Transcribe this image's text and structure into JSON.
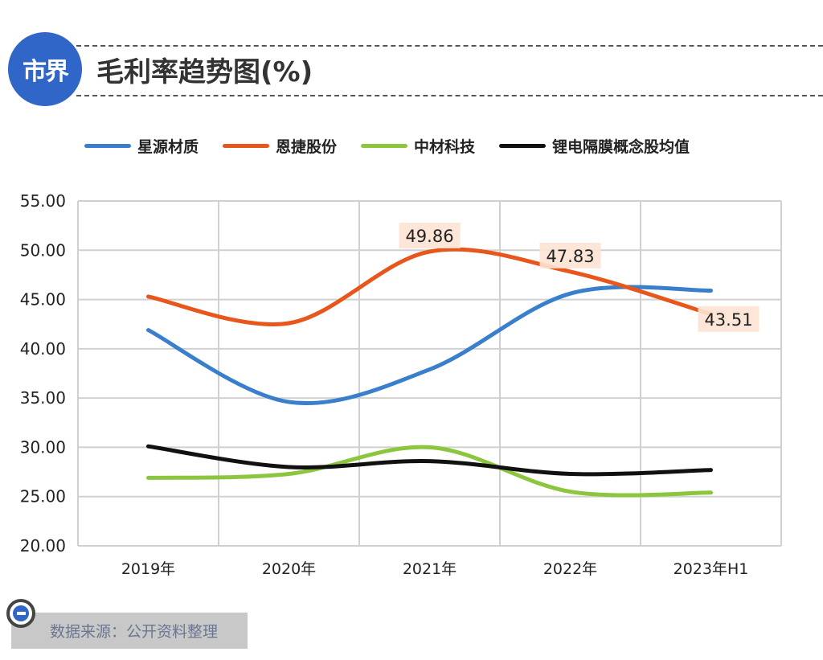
{
  "logo_text": "市界",
  "title": "毛利率趋势图(%)",
  "source": "数据来源：公开资料整理",
  "chart_data": {
    "type": "line",
    "title": "毛利率趋势图(%)",
    "categories": [
      "2019年",
      "2020年",
      "2021年",
      "2022年",
      "2023年H1"
    ],
    "ylim": [
      20,
      55
    ],
    "yticks": [
      "20.00",
      "25.00",
      "30.00",
      "35.00",
      "40.00",
      "45.00",
      "50.00",
      "55.00"
    ],
    "grid": true,
    "legend": "top",
    "series": [
      {
        "name": "星源材质",
        "color": "#3a7fcc",
        "values": [
          41.9,
          34.6,
          37.9,
          45.6,
          45.9
        ]
      },
      {
        "name": "恩捷股份",
        "color": "#e8561b",
        "values": [
          45.3,
          42.6,
          49.86,
          47.83,
          43.51
        ],
        "labels": [
          null,
          null,
          "49.86",
          "47.83",
          "43.51"
        ]
      },
      {
        "name": "中材科技",
        "color": "#8cc63f",
        "values": [
          26.9,
          27.3,
          30.0,
          25.5,
          25.4
        ]
      },
      {
        "name": "锂电隔膜概念股均值",
        "color": "#111111",
        "values": [
          30.1,
          28.0,
          28.6,
          27.3,
          27.7
        ]
      }
    ]
  }
}
